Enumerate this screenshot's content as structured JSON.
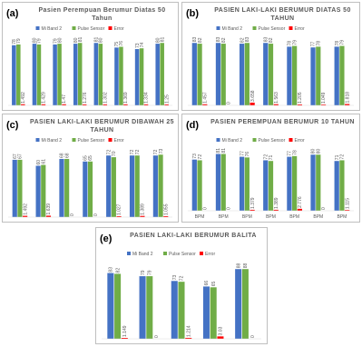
{
  "chart_data": [
    {
      "type": "bar",
      "label": "(a)",
      "title": "Pasien Perempuan Berumur Diatas 50 Tahun",
      "categories": [
        null,
        null,
        null,
        null,
        null,
        null,
        null,
        null
      ],
      "series": [
        {
          "name": "Mi Band 2",
          "color": "#4472c4",
          "values": [
            78,
            80,
            79,
            80,
            81,
            75,
            73,
            80
          ]
        },
        {
          "name": "Pulse Sensor",
          "color": "#70ad47",
          "values": [
            79,
            79,
            80,
            81,
            80,
            76,
            74,
            81
          ]
        },
        {
          "name": "Error",
          "color": "#ff0000",
          "values": [
            1.492,
            1.429,
            1.47,
            1.276,
            1.302,
            1.369,
            1.334,
            1.25
          ]
        }
      ]
    },
    {
      "type": "bar",
      "label": "(b)",
      "title": "PASIEN LAKI-LAKI BERUMUR DIATAS 50 TAHUN",
      "categories": [
        null,
        null,
        null,
        null,
        null,
        null,
        null
      ],
      "series": [
        {
          "name": "Mi Band 2",
          "color": "#4472c4",
          "values": [
            83,
            83,
            82,
            83,
            78,
            77,
            78
          ]
        },
        {
          "name": "Pulse Sensor",
          "color": "#70ad47",
          "values": [
            82,
            82,
            83,
            82,
            79,
            78,
            79
          ]
        },
        {
          "name": "Error",
          "color": "#ff0000",
          "values": [
            1.457,
            0,
            3.658,
            1.563,
            1.205,
            1.049,
            1.818
          ]
        }
      ]
    },
    {
      "type": "bar",
      "label": "(c)",
      "title": "PASIEN LAKI-LAKI BERUMUR DIBAWAH 25 TAHUN",
      "categories": [
        null,
        null,
        null,
        null,
        null,
        null,
        null
      ],
      "series": [
        {
          "name": "Mi Band 2",
          "color": "#4472c4",
          "values": [
            67,
            60,
            68,
            65,
            72,
            72,
            72
          ]
        },
        {
          "name": "Pulse Sensor",
          "color": "#70ad47",
          "values": [
            67,
            61,
            68,
            65,
            70,
            72,
            73
          ]
        },
        {
          "name": "Error",
          "color": "#ff0000",
          "values": [
            1.492,
            1.639,
            0,
            0,
            1.027,
            1.389,
            1.055
          ]
        }
      ]
    },
    {
      "type": "bar",
      "label": "(d)",
      "title": "PASIEN PEREMPUAN BERUMUR 10 TAHUN",
      "categories": [
        "BPM",
        "BPM",
        "BPM",
        "BPM",
        "BPM",
        "BPM",
        "BPM"
      ],
      "series": [
        {
          "name": "Mi Band 2",
          "color": "#4472c4",
          "values": [
            73,
            81,
            77,
            72,
            77,
            80,
            71
          ]
        },
        {
          "name": "Pulse Sensor",
          "color": "#70ad47",
          "values": [
            72,
            81,
            76,
            71,
            78,
            80,
            72
          ]
        },
        {
          "name": "Error",
          "color": "#ff0000",
          "values": [
            0,
            0,
            1.379,
            1.389,
            2.776,
            0,
            1.115
          ]
        }
      ]
    },
    {
      "type": "bar",
      "label": "(e)",
      "title": "PASIEN LAKI-LAKI BERUMUR BALITA",
      "categories": [
        null,
        null,
        null,
        null,
        null
      ],
      "series": [
        {
          "name": "Mi Band 2",
          "color": "#4472c4",
          "values": [
            83,
            79,
            73,
            66,
            88
          ]
        },
        {
          "name": "Pulse Sensor",
          "color": "#70ad47",
          "values": [
            82,
            79,
            72,
            65,
            88
          ]
        },
        {
          "name": "Error",
          "color": "#ff0000",
          "values": [
            1.149,
            0,
            1.214,
            3.03,
            0
          ]
        }
      ]
    }
  ]
}
